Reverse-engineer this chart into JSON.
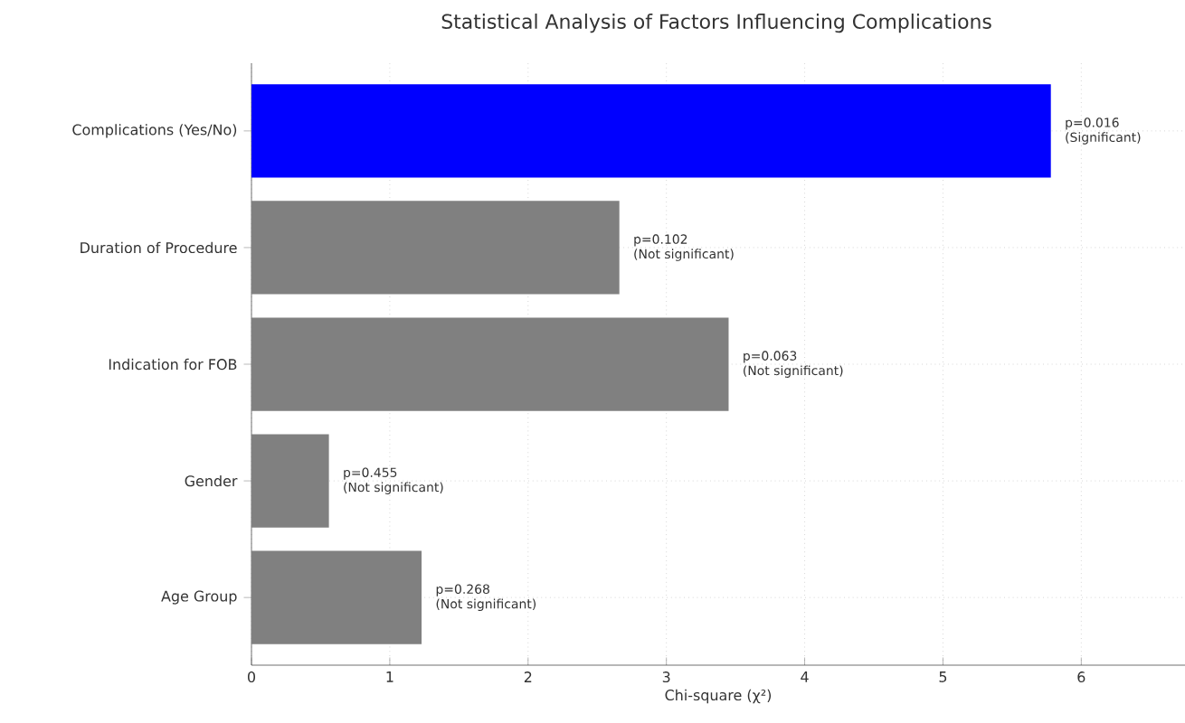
{
  "chart_data": {
    "type": "bar",
    "orientation": "horizontal",
    "title": "Statistical Analysis of Factors Influencing Complications",
    "xlabel": "Chi-square (χ²)",
    "categories": [
      "Complications (Yes/No)",
      "Duration of Procedure",
      "Indication for FOB",
      "Gender",
      "Age Group"
    ],
    "values": [
      5.78,
      2.66,
      3.45,
      0.56,
      1.23
    ],
    "colors": [
      "#0000ff",
      "#808080",
      "#808080",
      "#808080",
      "#808080"
    ],
    "annotations": [
      {
        "text": "p=0.016",
        "x": 5.78,
        "y": "Complications (Yes/No)"
      },
      {
        "text": "(Significant)",
        "x": 5.78,
        "y": "Complications (Yes/No)"
      },
      {
        "text": "p=0.102",
        "x": 2.66,
        "y": "Duration of Procedure"
      },
      {
        "text": "(Not significant)",
        "x": 2.66,
        "y": "Duration of Procedure"
      },
      {
        "text": "p=0.063",
        "x": 3.45,
        "y": "Indication for FOB"
      },
      {
        "text": "(Not significant)",
        "x": 3.45,
        "y": "Indication for FOB"
      },
      {
        "text": "p=0.455",
        "x": 0.56,
        "y": "Gender"
      },
      {
        "text": "(Not significant)",
        "x": 0.56,
        "y": "Gender"
      },
      {
        "text": "p=0.268",
        "x": 1.23,
        "y": "Age Group"
      },
      {
        "text": "(Not significant)",
        "x": 1.23,
        "y": "Age Group"
      }
    ],
    "xlim": [
      0,
      6.75
    ],
    "xticks": [
      0,
      1,
      2,
      3,
      4,
      5,
      6
    ],
    "grid": true
  }
}
